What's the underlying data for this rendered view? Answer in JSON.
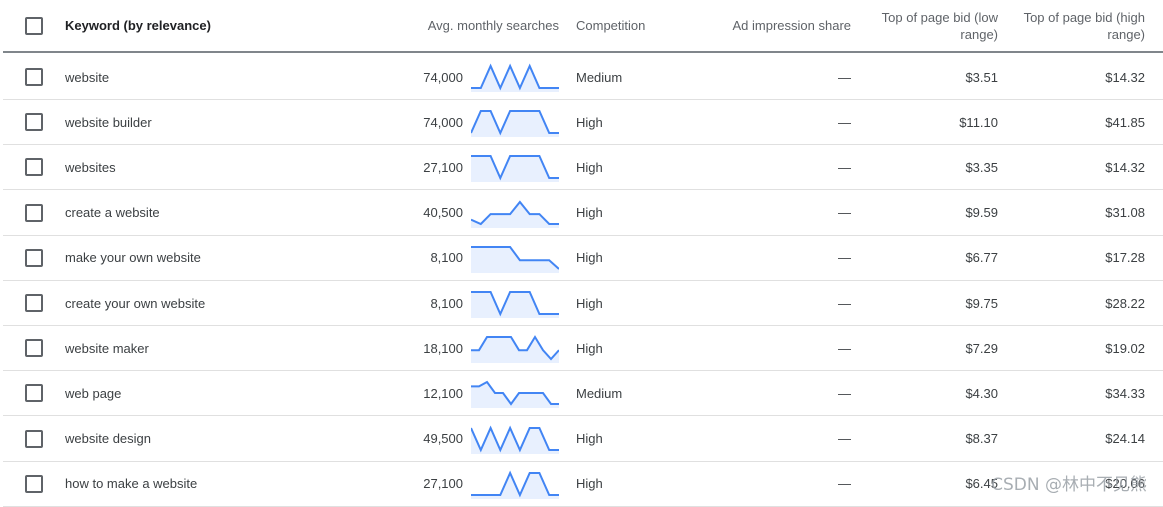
{
  "header": {
    "keyword": "Keyword (by relevance)",
    "avg_monthly": "Avg. monthly searches",
    "competition": "Competition",
    "ad_impression": "Ad impression share",
    "bid_low": "Top of page bid (low range)",
    "bid_high": "Top of page bid (high range)"
  },
  "rows": [
    {
      "keyword": "website",
      "avg": "74,000",
      "competition": "Medium",
      "impression": "—",
      "low": "$3.51",
      "high": "$14.32",
      "trend": [
        0,
        0,
        1,
        0,
        1,
        0,
        1,
        0,
        0,
        0
      ]
    },
    {
      "keyword": "website builder",
      "avg": "74,000",
      "competition": "High",
      "impression": "—",
      "low": "$11.10",
      "high": "$41.85",
      "trend": [
        0,
        1,
        1,
        0,
        1,
        1,
        1,
        1,
        0,
        0
      ]
    },
    {
      "keyword": "websites",
      "avg": "27,100",
      "competition": "High",
      "impression": "—",
      "low": "$3.35",
      "high": "$14.32",
      "trend": [
        1,
        1,
        1,
        0,
        1,
        1,
        1,
        1,
        0,
        0
      ]
    },
    {
      "keyword": "create a website",
      "avg": "40,500",
      "competition": "High",
      "impression": "—",
      "low": "$9.59",
      "high": "$31.08",
      "trend": [
        0.2,
        0,
        0.45,
        0.45,
        0.45,
        1,
        0.45,
        0.45,
        0,
        0
      ]
    },
    {
      "keyword": "make your own website",
      "avg": "8,100",
      "competition": "High",
      "impression": "—",
      "low": "$6.77",
      "high": "$17.28",
      "trend": [
        1,
        1,
        1,
        1,
        1,
        0.4,
        0.4,
        0.4,
        0.4,
        0
      ]
    },
    {
      "keyword": "create your own website",
      "avg": "8,100",
      "competition": "High",
      "impression": "—",
      "low": "$9.75",
      "high": "$28.22",
      "trend": [
        1,
        1,
        1,
        0,
        1,
        1,
        1,
        0,
        0,
        0
      ]
    },
    {
      "keyword": "website maker",
      "avg": "18,100",
      "competition": "High",
      "impression": "—",
      "low": "$7.29",
      "high": "$19.02",
      "trend": [
        0.4,
        0.4,
        1,
        1,
        1,
        1,
        0.4,
        0.4,
        1,
        0.4,
        0,
        0.4
      ]
    },
    {
      "keyword": "web page",
      "avg": "12,100",
      "competition": "Medium",
      "impression": "—",
      "low": "$4.30",
      "high": "$34.33",
      "trend": [
        0.8,
        0.8,
        1,
        0.5,
        0.5,
        0,
        0.5,
        0.5,
        0.5,
        0.5,
        0,
        0
      ]
    },
    {
      "keyword": "website design",
      "avg": "49,500",
      "competition": "High",
      "impression": "—",
      "low": "$8.37",
      "high": "$24.14",
      "trend": [
        1,
        0,
        1,
        0,
        1,
        0,
        1,
        1,
        0,
        0
      ]
    },
    {
      "keyword": "how to make a website",
      "avg": "27,100",
      "competition": "High",
      "impression": "—",
      "low": "$6.45",
      "high": "$20.06",
      "trend": [
        0,
        0,
        0,
        0,
        1,
        0,
        1,
        1,
        0,
        0
      ]
    }
  ],
  "watermark": "CSDN @林中不见熊"
}
